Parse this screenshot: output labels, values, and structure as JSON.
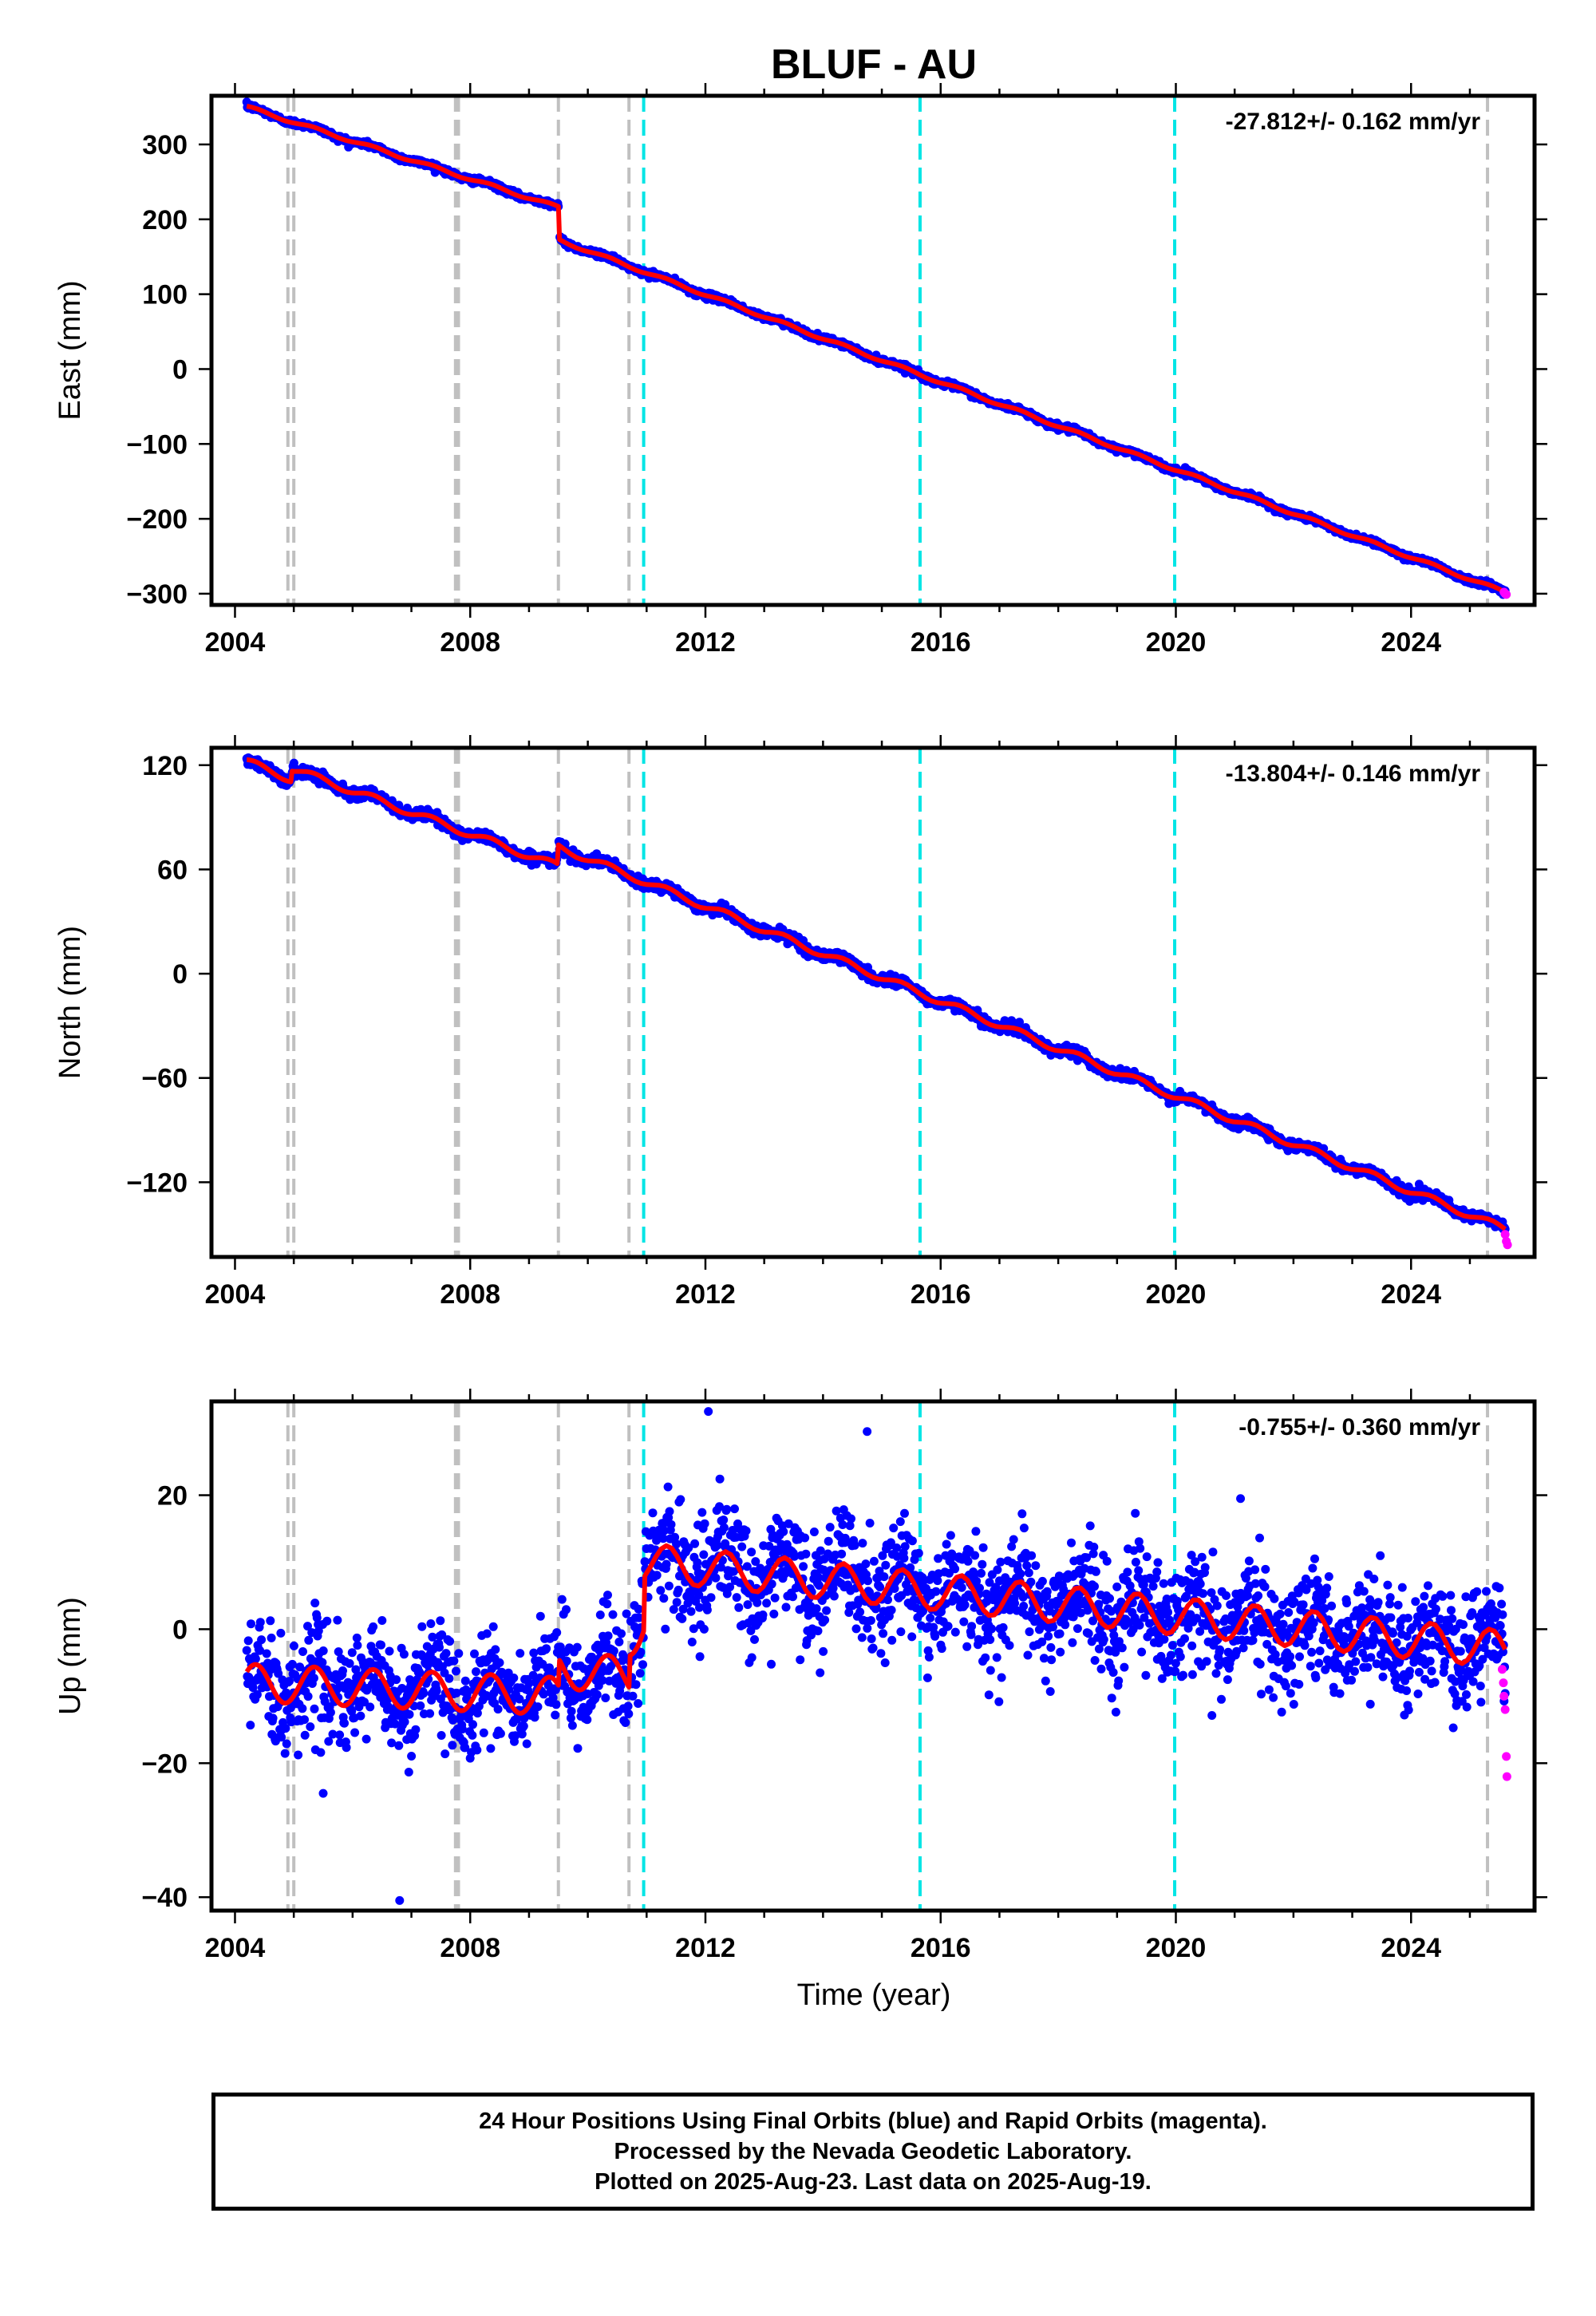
{
  "title": "BLUF - AU",
  "xlabel": "Time (year)",
  "xticks": [
    "2004",
    "2008",
    "2012",
    "2016",
    "2020",
    "2024"
  ],
  "colors": {
    "final": "#0000ff",
    "rapid": "#ff00ff",
    "model": "#ff0000",
    "equipment_change": "#c0c0c0",
    "earthquake": "#00e5e5"
  },
  "chart_data": [
    {
      "type": "scatter",
      "component": "east",
      "ylabel": "East (mm)",
      "rate_label": "-27.812+/- 0.162 mm/yr",
      "xlim": [
        2003.6,
        2026.1
      ],
      "ylim": [
        -315,
        365
      ],
      "yticks": [
        -300,
        -200,
        -100,
        0,
        100,
        200,
        300
      ],
      "ytick_labels": [
        "−300",
        "−200",
        "−100",
        "0",
        "100",
        "200",
        "300"
      ],
      "start": [
        2004.2,
        350
      ],
      "segments": [
        {
          "t0": 2004.2,
          "t1": 2009.5,
          "v0": 350,
          "v1": 216
        },
        {
          "t0": 2009.52,
          "t1": 2025.6,
          "v0": 172,
          "v1": -298
        }
      ],
      "seasonal_amp": 2,
      "scatter_sd": 2,
      "rapid_points": [
        [
          2025.58,
          -298
        ],
        [
          2025.6,
          -300
        ],
        [
          2025.62,
          -301
        ]
      ],
      "equipment_changes": [
        2004.9,
        2005.0,
        2007.75,
        2007.8,
        2009.5,
        2010.7,
        2025.3
      ],
      "earthquakes": [
        2010.95,
        2015.65,
        2019.98
      ]
    },
    {
      "type": "scatter",
      "component": "north",
      "ylabel": "North (mm)",
      "rate_label": "-13.804+/- 0.146 mm/yr",
      "xlim": [
        2003.6,
        2026.1
      ],
      "ylim": [
        -163,
        130
      ],
      "yticks": [
        -120,
        -60,
        0,
        60,
        120
      ],
      "ytick_labels": [
        "−120",
        "−60",
        "0",
        "60",
        "120"
      ],
      "segments": [
        {
          "t0": 2004.2,
          "t1": 2004.95,
          "v0": 122,
          "v1": 112
        },
        {
          "t0": 2004.97,
          "t1": 2009.48,
          "v0": 118,
          "v1": 62
        },
        {
          "t0": 2009.5,
          "t1": 2025.6,
          "v0": 73,
          "v1": -147
        }
      ],
      "seasonal_amp": 2,
      "scatter_sd": 1.5,
      "rapid_points": [
        [
          2025.6,
          -150
        ],
        [
          2025.62,
          -154
        ],
        [
          2025.64,
          -156
        ]
      ],
      "equipment_changes": [
        2004.9,
        2005.0,
        2007.75,
        2007.8,
        2009.5,
        2010.7,
        2025.3
      ],
      "earthquakes": [
        2010.95,
        2015.65,
        2019.98
      ]
    },
    {
      "type": "scatter",
      "component": "up",
      "ylabel": "Up (mm)",
      "rate_label": "-0.755+/- 0.360 mm/yr",
      "xlim": [
        2003.6,
        2026.1
      ],
      "ylim": [
        -42,
        34
      ],
      "yticks": [
        -40,
        -20,
        0,
        20
      ],
      "ytick_labels": [
        "−40",
        "−20",
        "0",
        "20"
      ],
      "segments": [
        {
          "t0": 2004.2,
          "t1": 2009.5,
          "v0": -8,
          "v1": -10
        },
        {
          "t0": 2009.52,
          "t1": 2010.7,
          "v0": -6,
          "v1": -7
        },
        {
          "t0": 2010.72,
          "t1": 2010.95,
          "v0": -2,
          "v1": 2
        },
        {
          "t0": 2010.97,
          "t1": 2025.6,
          "v0": 10,
          "v1": -3
        }
      ],
      "seasonal_amp": 2.8,
      "scatter_sd": 4,
      "rapid_points": [
        [
          2025.55,
          -6
        ],
        [
          2025.57,
          -8
        ],
        [
          2025.58,
          -10
        ],
        [
          2025.6,
          -12
        ],
        [
          2025.62,
          -19
        ],
        [
          2025.63,
          -22
        ]
      ],
      "outliers": [
        [
          2006.8,
          -40.5
        ],
        [
          2012.05,
          32.5
        ],
        [
          2014.75,
          29.5
        ],
        [
          2021.1,
          19.5
        ],
        [
          2005.5,
          -24.5
        ],
        [
          2013.95,
          -6.5
        ]
      ],
      "equipment_changes": [
        2004.9,
        2005.0,
        2007.75,
        2007.8,
        2009.5,
        2010.7,
        2025.3
      ],
      "earthquakes": [
        2010.95,
        2015.65,
        2019.98
      ]
    }
  ],
  "footer": {
    "line1": "24 Hour Positions Using Final Orbits (blue) and Rapid Orbits (magenta).",
    "line2": "Processed by the Nevada Geodetic Laboratory.",
    "line3": "Plotted on 2025-Aug-23. Last data on 2025-Aug-19."
  }
}
